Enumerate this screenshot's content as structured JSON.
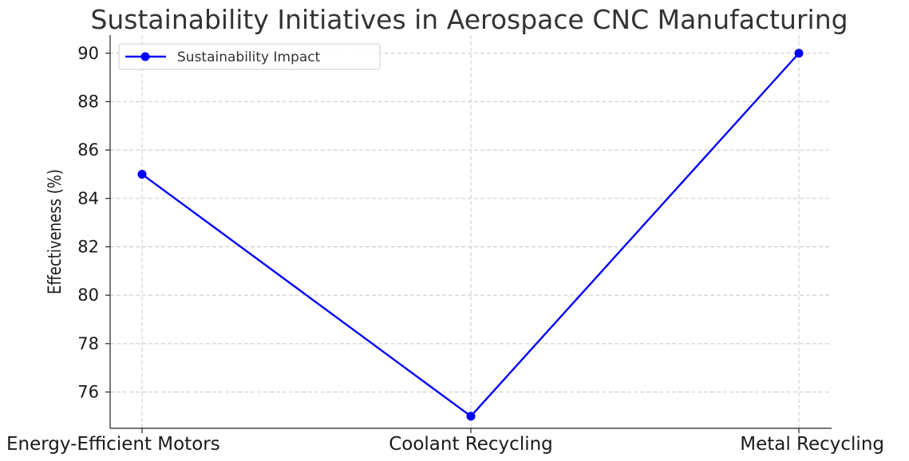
{
  "chart_data": {
    "type": "line",
    "title": "Sustainability Initiatives in Aerospace CNC Manufacturing",
    "xlabel": "",
    "ylabel": "Effectiveness (%)",
    "categories": [
      "Energy-Efficient Motors",
      "Coolant Recycling",
      "Metal Recycling"
    ],
    "series": [
      {
        "name": "Sustainability Impact",
        "values": [
          85,
          75,
          90
        ],
        "color": "#0000ff",
        "marker": "circle"
      }
    ],
    "ylim": [
      74.5,
      90.75
    ],
    "yticks": [
      76,
      78,
      80,
      82,
      84,
      86,
      88,
      90
    ],
    "grid": true,
    "legend_position": "top-left"
  }
}
